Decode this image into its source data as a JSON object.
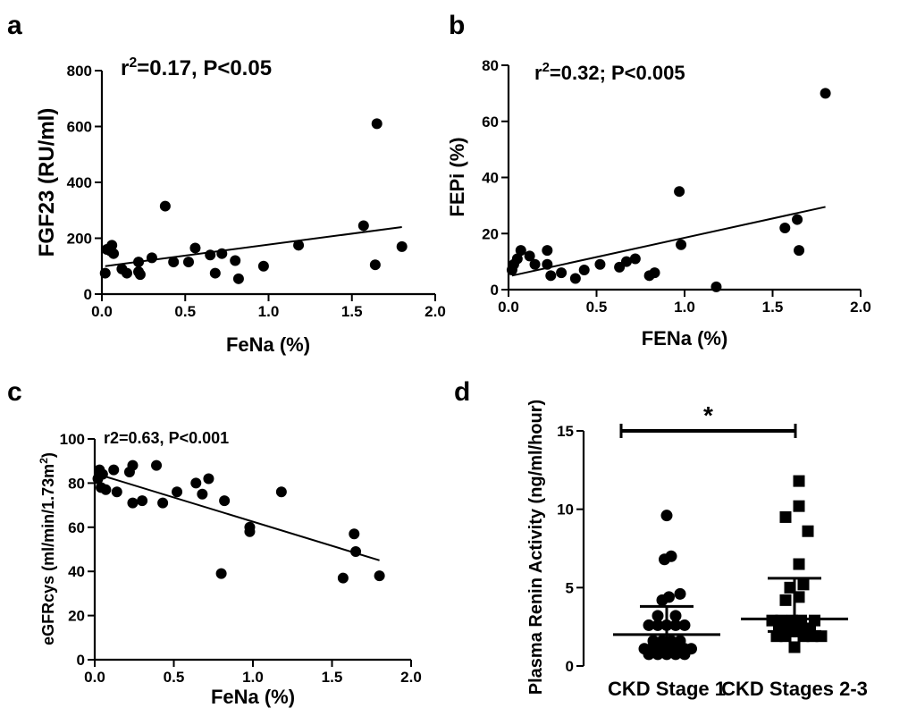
{
  "chart_data": [
    {
      "panel": "a",
      "type": "scatter",
      "annotation": {
        "pre": "r",
        "sup": "2",
        "post": "=0.17, P<0.05"
      },
      "xlabel": "FeNa (%)",
      "ylabel": "FGF23 (RU/ml)",
      "xlim": [
        0,
        2
      ],
      "ylim": [
        0,
        800
      ],
      "xticks": [
        "0.0",
        "0.5",
        "1.0",
        "1.5",
        "2.0"
      ],
      "yticks": [
        "0",
        "200",
        "400",
        "600",
        "800"
      ],
      "points": [
        [
          0.02,
          75
        ],
        [
          0.03,
          160
        ],
        [
          0.05,
          155
        ],
        [
          0.06,
          175
        ],
        [
          0.07,
          145
        ],
        [
          0.12,
          90
        ],
        [
          0.15,
          75
        ],
        [
          0.22,
          115
        ],
        [
          0.22,
          80
        ],
        [
          0.23,
          70
        ],
        [
          0.3,
          130
        ],
        [
          0.38,
          315
        ],
        [
          0.43,
          115
        ],
        [
          0.52,
          115
        ],
        [
          0.56,
          165
        ],
        [
          0.65,
          140
        ],
        [
          0.68,
          75
        ],
        [
          0.72,
          145
        ],
        [
          0.8,
          120
        ],
        [
          0.82,
          55
        ],
        [
          0.97,
          100
        ],
        [
          1.18,
          175
        ],
        [
          1.57,
          245
        ],
        [
          1.64,
          105
        ],
        [
          1.65,
          610
        ],
        [
          1.8,
          170
        ]
      ],
      "fit": [
        [
          0.02,
          100
        ],
        [
          1.8,
          240
        ]
      ]
    },
    {
      "panel": "b",
      "type": "scatter",
      "annotation": {
        "pre": "r",
        "sup": "2",
        "post": "=0.32; P<0.005"
      },
      "xlabel": "FENa (%)",
      "ylabel": "FEPi (%)",
      "xlim": [
        0,
        2
      ],
      "ylim": [
        0,
        80
      ],
      "xticks": [
        "0.0",
        "0.5",
        "1.0",
        "1.5",
        "2.0"
      ],
      "yticks": [
        "0",
        "20",
        "40",
        "60",
        "80"
      ],
      "points": [
        [
          0.02,
          7
        ],
        [
          0.03,
          9
        ],
        [
          0.05,
          11
        ],
        [
          0.07,
          14
        ],
        [
          0.12,
          12
        ],
        [
          0.15,
          9
        ],
        [
          0.22,
          14
        ],
        [
          0.22,
          9
        ],
        [
          0.24,
          5
        ],
        [
          0.3,
          6
        ],
        [
          0.38,
          4
        ],
        [
          0.43,
          7
        ],
        [
          0.52,
          9
        ],
        [
          0.63,
          8
        ],
        [
          0.67,
          10
        ],
        [
          0.72,
          11
        ],
        [
          0.8,
          5
        ],
        [
          0.83,
          6
        ],
        [
          0.97,
          35
        ],
        [
          0.98,
          16
        ],
        [
          1.18,
          1
        ],
        [
          1.57,
          22
        ],
        [
          1.64,
          25
        ],
        [
          1.65,
          14
        ],
        [
          1.8,
          70
        ]
      ],
      "fit": [
        [
          0.02,
          5
        ],
        [
          1.8,
          29.5
        ]
      ]
    },
    {
      "panel": "c",
      "type": "scatter",
      "annotation": {
        "pre": "r2=0.63, P<0.001",
        "sup": "",
        "post": ""
      },
      "xlabel": "FeNa (%)",
      "ylabel": {
        "pre": "eGFRcys (ml/min/1.73m",
        "sup": "2",
        "post": ")"
      },
      "xlim": [
        0,
        2
      ],
      "ylim": [
        0,
        100
      ],
      "xticks": [
        "0.0",
        "0.5",
        "1.0",
        "1.5",
        "2.0"
      ],
      "yticks": [
        "0",
        "20",
        "40",
        "60",
        "80",
        "100"
      ],
      "points": [
        [
          0.02,
          82
        ],
        [
          0.03,
          86
        ],
        [
          0.04,
          78
        ],
        [
          0.05,
          84
        ],
        [
          0.07,
          77
        ],
        [
          0.12,
          86
        ],
        [
          0.14,
          76
        ],
        [
          0.22,
          85
        ],
        [
          0.24,
          88
        ],
        [
          0.24,
          71
        ],
        [
          0.3,
          72
        ],
        [
          0.39,
          88
        ],
        [
          0.43,
          71
        ],
        [
          0.52,
          76
        ],
        [
          0.64,
          80
        ],
        [
          0.68,
          75
        ],
        [
          0.72,
          82
        ],
        [
          0.8,
          39
        ],
        [
          0.82,
          72
        ],
        [
          0.98,
          60
        ],
        [
          0.98,
          58
        ],
        [
          1.18,
          76
        ],
        [
          1.57,
          37
        ],
        [
          1.64,
          57
        ],
        [
          1.65,
          49
        ],
        [
          1.8,
          38
        ]
      ],
      "fit": [
        [
          0.02,
          84
        ],
        [
          1.8,
          45
        ]
      ]
    },
    {
      "panel": "d",
      "type": "scatter",
      "ylabel": "Plasma Renin Activity (ng/ml/hour)",
      "ylim": [
        0,
        15
      ],
      "yticks": [
        "0",
        "5",
        "10",
        "15"
      ],
      "categories": [
        "CKD Stage 1",
        "CKD Stages 2-3"
      ],
      "significance": "*",
      "groups": [
        {
          "category": "CKD Stage 1",
          "marker": "circle",
          "median": 2.0,
          "q1": 1.0,
          "q3": 3.8,
          "points": [
            [
              -0.5,
              1.1
            ],
            [
              -0.35,
              1.1
            ],
            [
              -0.2,
              1.1
            ],
            [
              -0.05,
              1.1
            ],
            [
              0.1,
              1.1
            ],
            [
              0.25,
              1.1
            ],
            [
              0.4,
              1.1
            ],
            [
              0.55,
              1.1
            ],
            [
              -0.4,
              0.75
            ],
            [
              -0.2,
              0.75
            ],
            [
              0.0,
              0.75
            ],
            [
              0.2,
              0.75
            ],
            [
              0.4,
              0.75
            ],
            [
              -0.3,
              1.6
            ],
            [
              -0.1,
              1.6
            ],
            [
              0.1,
              1.6
            ],
            [
              0.3,
              1.6
            ],
            [
              -0.4,
              2.6
            ],
            [
              -0.2,
              2.6
            ],
            [
              0.0,
              2.6
            ],
            [
              0.2,
              2.6
            ],
            [
              0.4,
              2.6
            ],
            [
              -0.2,
              3.2
            ],
            [
              0.2,
              3.2
            ],
            [
              -0.1,
              4.2
            ],
            [
              0.05,
              4.4
            ],
            [
              0.3,
              4.6
            ],
            [
              -0.05,
              6.8
            ],
            [
              0.1,
              7.0
            ],
            [
              0.0,
              9.6
            ]
          ]
        },
        {
          "category": "CKD Stages 2-3",
          "marker": "square",
          "median": 3.0,
          "q1": 2.2,
          "q3": 5.6,
          "points": [
            [
              -0.4,
              1.9
            ],
            [
              -0.2,
              1.9
            ],
            [
              0.2,
              1.9
            ],
            [
              0.4,
              1.9
            ],
            [
              0.6,
              1.9
            ],
            [
              -0.5,
              2.9
            ],
            [
              -0.3,
              2.9
            ],
            [
              -0.05,
              2.9
            ],
            [
              0.15,
              2.9
            ],
            [
              0.45,
              2.9
            ],
            [
              -0.1,
              2.2
            ],
            [
              0.1,
              2.2
            ],
            [
              -0.35,
              2.4
            ],
            [
              0.35,
              2.4
            ],
            [
              0.0,
              1.2
            ],
            [
              -0.2,
              4.2
            ],
            [
              0.1,
              4.4
            ],
            [
              -0.1,
              5.0
            ],
            [
              0.2,
              5.2
            ],
            [
              0.1,
              6.5
            ],
            [
              0.3,
              8.6
            ],
            [
              -0.2,
              9.5
            ],
            [
              0.1,
              10.2
            ],
            [
              0.1,
              11.8
            ]
          ]
        }
      ]
    }
  ],
  "panel_labels": [
    "a",
    "b",
    "c",
    "d"
  ]
}
